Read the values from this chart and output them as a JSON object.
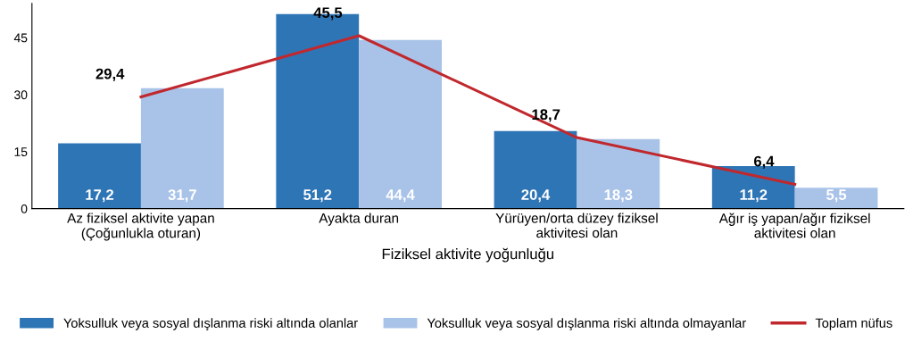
{
  "chart_data": {
    "type": "bar",
    "xlabel": "Fiziksel aktivite yoğunluğu",
    "categories": [
      "Az fiziksel aktivite yapan\n(Çoğunlukla oturan)",
      "Ayakta duran",
      "Yürüyen/orta düzey fiziksel\naktivitesi olan",
      "Ağır iş yapan/ağır fiziksel\naktivitesi olan"
    ],
    "series": [
      {
        "name": "Yoksulluk veya sosyal dışlanma riski altında olanlar",
        "color": "#2e75b6",
        "values": [
          17.2,
          51.2,
          20.4,
          11.2
        ],
        "value_labels": [
          "17,2",
          "51,2",
          "20,4",
          "11,2"
        ]
      },
      {
        "name": "Yoksulluk veya sosyal dışlanma riski altında olmayanlar",
        "color": "#a9c3e8",
        "values": [
          31.7,
          44.4,
          18.3,
          5.5
        ],
        "value_labels": [
          "31,7",
          "44,4",
          "18,3",
          "5,5"
        ]
      },
      {
        "name": "Toplam nüfus",
        "type": "line",
        "color": "#c0282d",
        "values": [
          29.4,
          45.5,
          18.7,
          6.4
        ],
        "value_labels": [
          "29,4",
          "45,5",
          "18,7",
          "6,4"
        ]
      }
    ],
    "ylim": [
      0,
      54
    ],
    "yticks": [
      0,
      15,
      30,
      45
    ],
    "legend": "bottom",
    "grid": false,
    "marker": "none"
  }
}
